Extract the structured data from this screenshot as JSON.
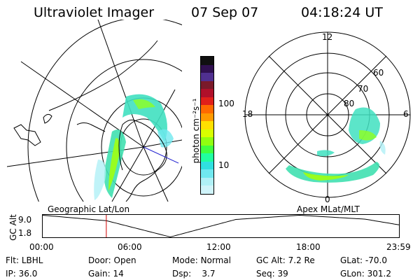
{
  "header": {
    "instrument": "Ultraviolet Imager",
    "date": "07 Sep 07",
    "time": "04:18:24 UT"
  },
  "colorbar": {
    "label": "photon cm⁻²s⁻¹",
    "ticks": [
      "100",
      "10"
    ],
    "colors": [
      "#101010",
      "#301050",
      "#503090",
      "#7a1a2a",
      "#b0102a",
      "#e0201a",
      "#ff6a00",
      "#ff9a00",
      "#ffe000",
      "#d8ff00",
      "#90ff10",
      "#40ff40",
      "#20ffa0",
      "#30e0e0",
      "#70e8ef",
      "#b0f0f6",
      "#d0f4fa"
    ]
  },
  "left_panel": {
    "label": "Geographic Lat/Lon"
  },
  "right_panel": {
    "label": "Apex MLat/MLT",
    "mlt_labels": {
      "top": "12",
      "left": "18",
      "right": "6",
      "bottom": "0"
    },
    "lat_labels": [
      "60",
      "70",
      "80"
    ]
  },
  "timeline": {
    "ylabel": "GC Alt",
    "y_ticks": [
      "9.0",
      "1.8"
    ],
    "x_ticks": [
      "00:00",
      "06:00",
      "12:00",
      "18:00",
      "23:59"
    ],
    "ylim": [
      1.8,
      9.0
    ],
    "x_range_hours": [
      0,
      24
    ],
    "cursor_hour": 4.3,
    "curve": [
      {
        "t": 0.0,
        "alt": 9.0
      },
      {
        "t": 4.3,
        "alt": 7.2
      },
      {
        "t": 8.6,
        "alt": 1.8
      },
      {
        "t": 13.0,
        "alt": 7.6
      },
      {
        "t": 17.3,
        "alt": 9.0
      },
      {
        "t": 21.7,
        "alt": 7.7
      },
      {
        "t": 24.0,
        "alt": 5.8
      }
    ]
  },
  "info": {
    "row1": [
      {
        "label": "Flt:",
        "value": "LBHL"
      },
      {
        "label": "Door:",
        "value": "Open"
      },
      {
        "label": "Mode:",
        "value": "Normal"
      },
      {
        "label": "GC Alt:",
        "value": "7.2 Re"
      },
      {
        "label": "GLat:",
        "value": "-70.0"
      }
    ],
    "row2": [
      {
        "label": "IP:",
        "value": "36.0"
      },
      {
        "label": "Gain:",
        "value": "14"
      },
      {
        "label": "Dsp:",
        "value": "3.7"
      },
      {
        "label": "Seq:",
        "value": "39"
      },
      {
        "label": "GLon:",
        "value": "301.2"
      }
    ]
  }
}
